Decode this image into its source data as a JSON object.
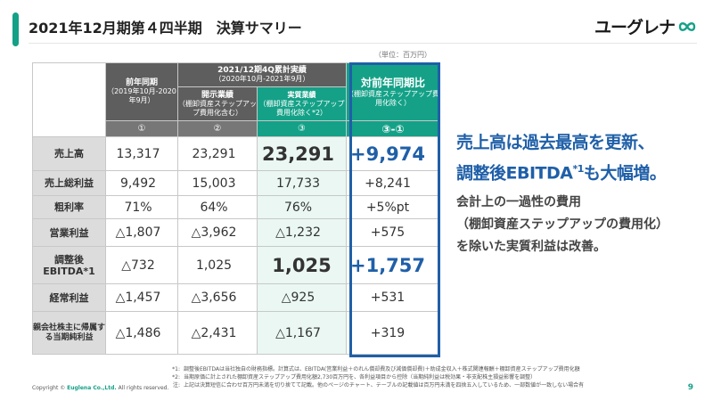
{
  "header": {
    "title": "2021年12月期第４四半期　決算サマリー",
    "logo_text": "ユーグレナ",
    "logo_icon": "infinity-icon",
    "accent_color": "#14a187"
  },
  "unit_note": "（単位：百万円）",
  "table": {
    "col_prev": {
      "title": "前年同期",
      "period": "（2019年10月-2020年9月）",
      "num": "①"
    },
    "col_group": {
      "title": "2021/12期4Q累計実績",
      "period": "（2020年10月-2021年9月）"
    },
    "col_disclosed": {
      "title": "開示業績",
      "note": "（棚卸資産ステップアップ費用化含む）",
      "num": "②"
    },
    "col_core": {
      "title": "実質業績",
      "note": "（棚卸資産ステップアップ費用化除く*2）",
      "num": "③"
    },
    "col_diff": {
      "title": "対前年同期比",
      "note": "（棚卸資産ステップアップ費用化除く）",
      "num": "③-①"
    },
    "rows": [
      {
        "label": "売上高",
        "prev": "13,317",
        "disclosed": "23,291",
        "core": "23,291",
        "diff": "+9,974"
      },
      {
        "label": "売上総利益",
        "prev": "9,492",
        "disclosed": "15,003",
        "core": "17,733",
        "diff": "+8,241"
      },
      {
        "label": "粗利率",
        "prev": "71%",
        "disclosed": "64%",
        "core": "76%",
        "diff": "+5%pt"
      },
      {
        "label": "営業利益",
        "prev": "△1,807",
        "disclosed": "△3,962",
        "core": "△1,232",
        "diff": "+575"
      },
      {
        "label": "調整後EBITDA*1",
        "prev": "△732",
        "disclosed": "1,025",
        "core": "1,025",
        "diff": "+1,757"
      },
      {
        "label": "経常利益",
        "prev": "△1,457",
        "disclosed": "△3,656",
        "core": "△925",
        "diff": "+531"
      },
      {
        "label": "親会社株主に帰属する当期純利益",
        "prev": "△1,486",
        "disclosed": "△2,431",
        "core": "△1,167",
        "diff": "+319"
      }
    ]
  },
  "summary": {
    "headline_1": "売上高は過去最高を更新、",
    "headline_2_pre": "調整後EBITDA",
    "headline_2_sup": "*1",
    "headline_2_post": "も大幅増。",
    "body_1": "会計上の一過性の費用",
    "body_2": "（棚卸資産ステップアップの費用化）",
    "body_3": "を除いた実質利益は改善。"
  },
  "footnotes": [
    {
      "key": "*1:",
      "text": "調整後EBITDAは当社独自の財務指標。計算式は、EBITDA(営業利益＋のれん償却費及び減価償却費)＋助成金収入＋株式関連報酬＋棚卸資産ステップアップ費用化額"
    },
    {
      "key": "*2:",
      "text": "当期原価に計上された棚卸資産ステップアップ費用化額2,730百万円を、各利益項目から控除（当期純利益は税効果・非支配株主損益影響を調整）"
    },
    {
      "key": "注:",
      "text": "上記は決算短信に合わせ百万円未満を切り捨てて記載。他のページのチャート、テーブルの記載値は百万円未満を四捨五入しているため、一部数値が一致しない場合有"
    }
  ],
  "copyright": {
    "prefix": "Copyright © ",
    "company": "Euglena Co.,Ltd.",
    "suffix": " All rights reserved."
  },
  "page_number": "9",
  "colors": {
    "teal": "#14a187",
    "blue": "#1f5fa8",
    "dark_gray": "#5e5e5e",
    "label_gray": "#dcdcdc"
  }
}
